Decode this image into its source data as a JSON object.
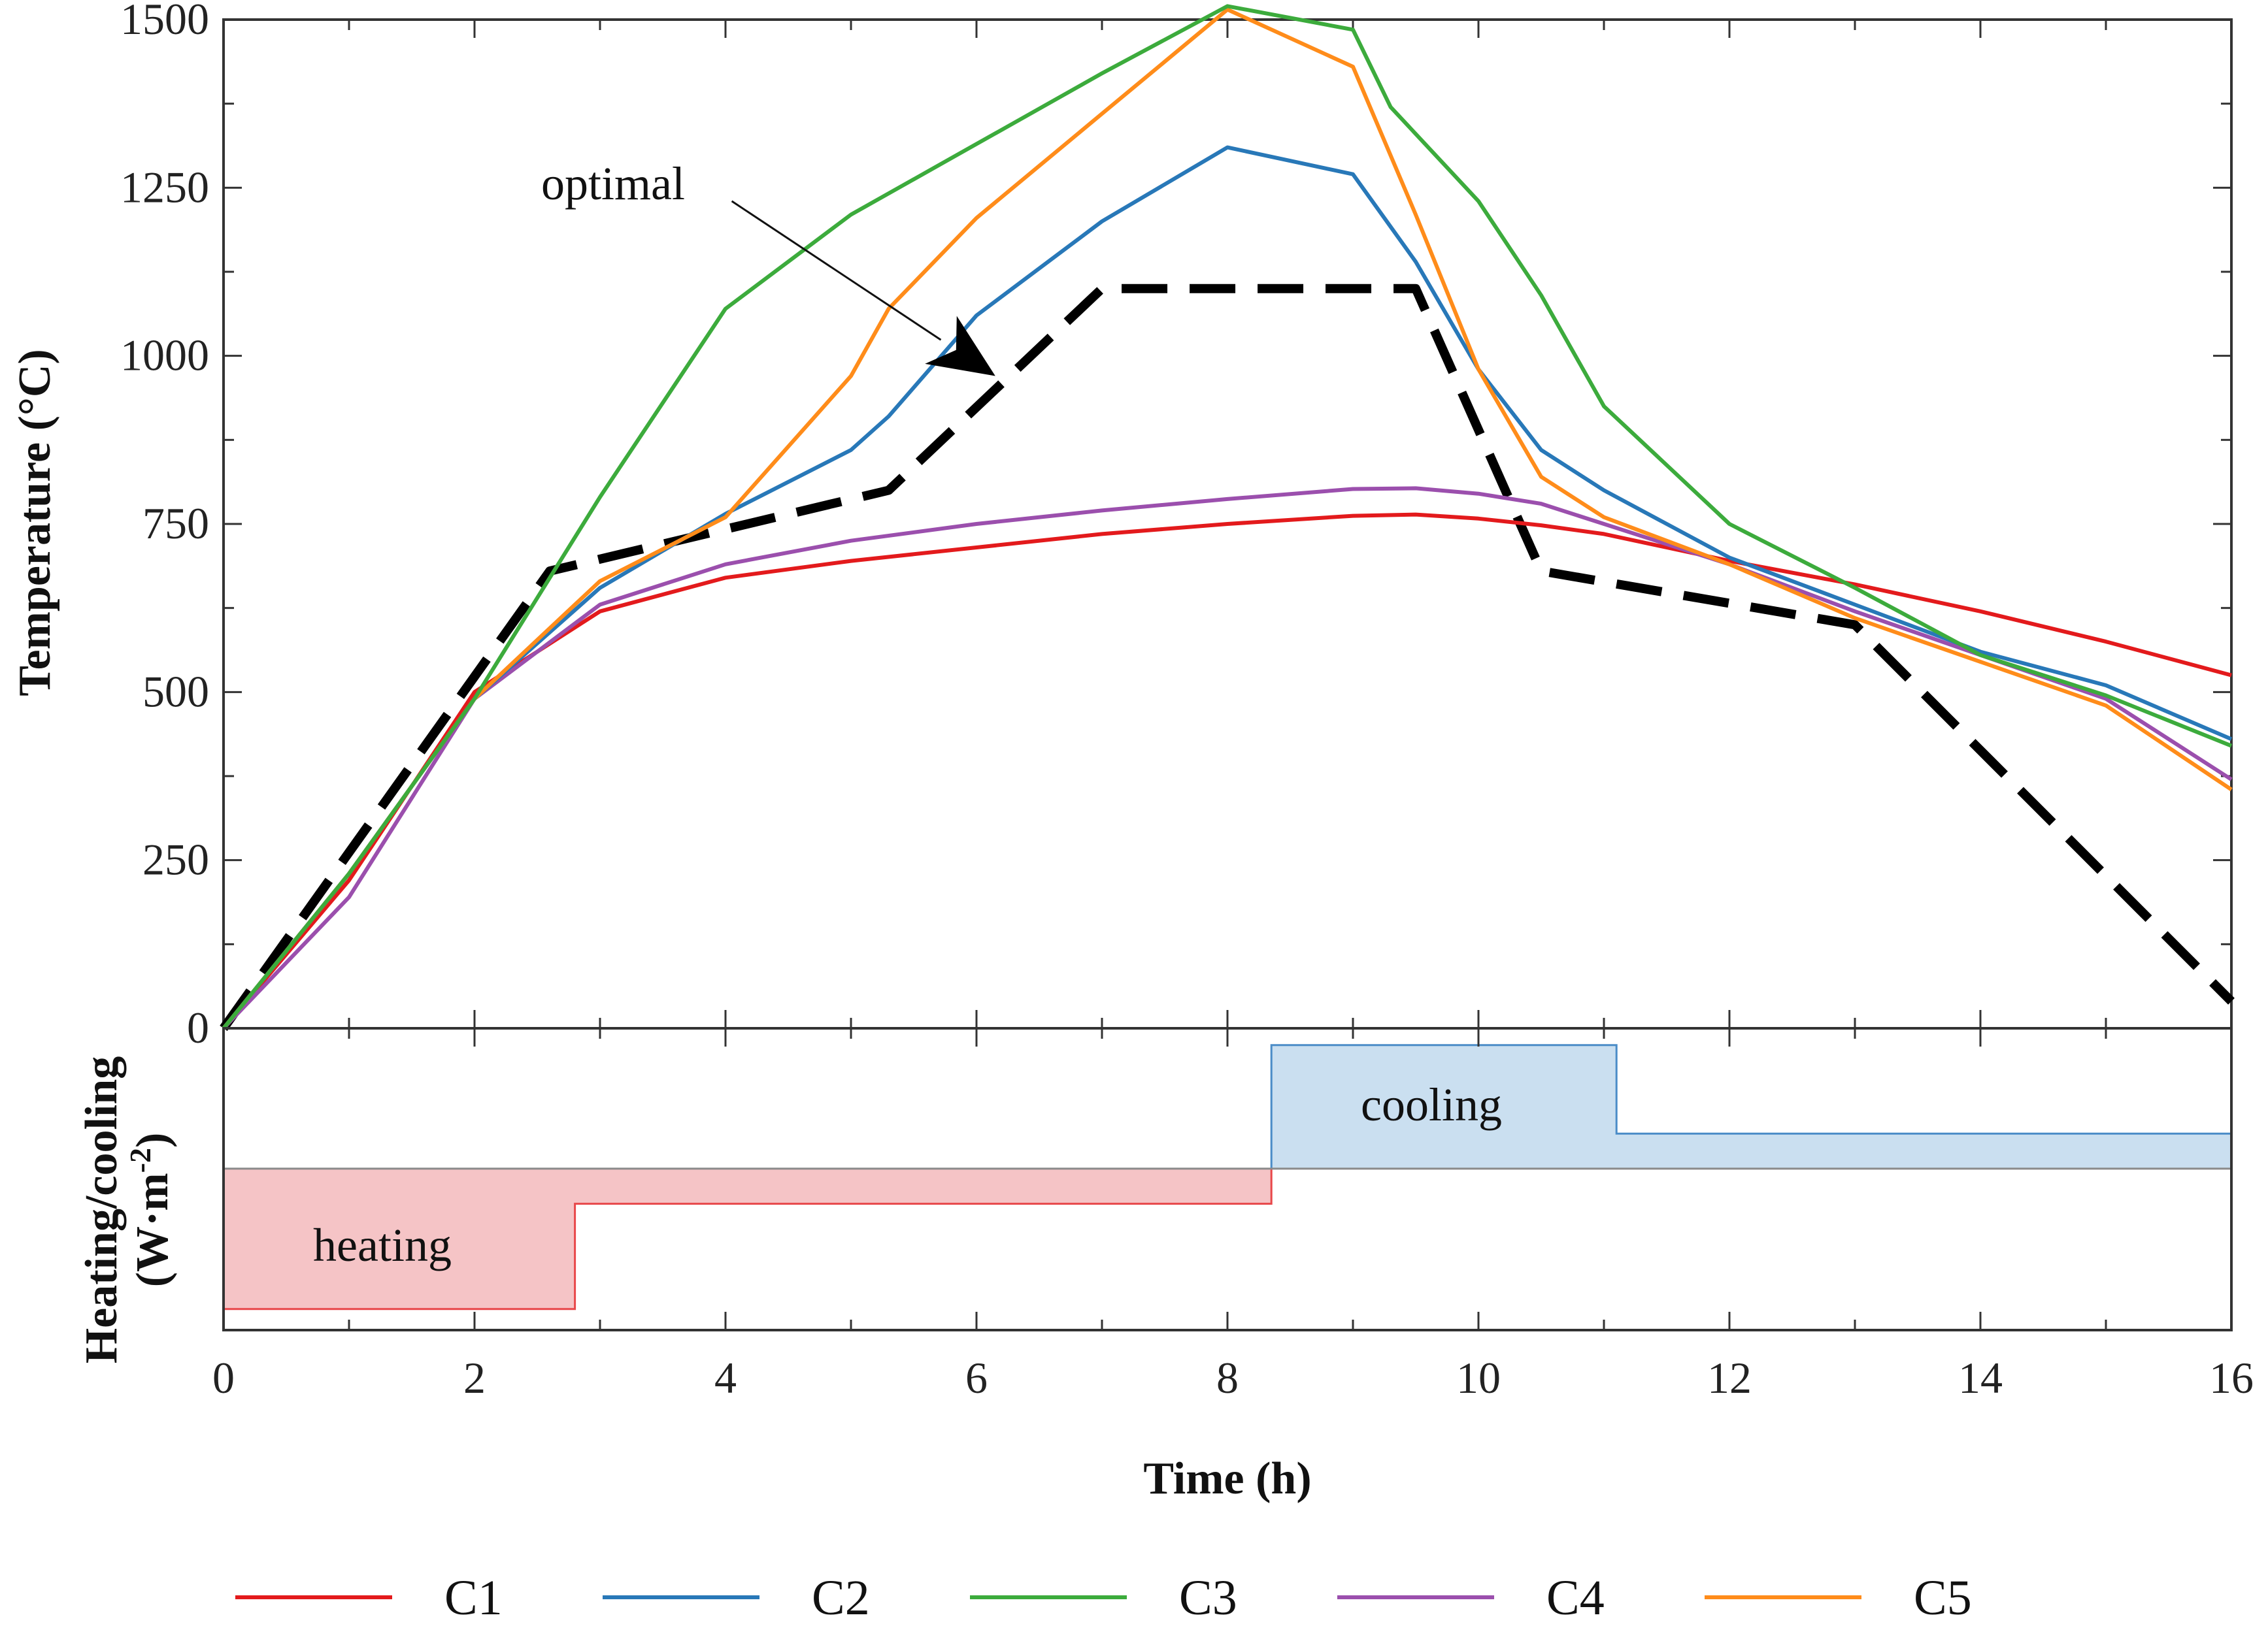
{
  "chart_data": [
    {
      "type": "line",
      "panel": "temperature",
      "ylabel": "Temperature (°C)",
      "xlabel": "Time (h)",
      "xlim": [
        0,
        16
      ],
      "ylim": [
        0,
        1500
      ],
      "xticks": [
        "0",
        "2",
        "4",
        "6",
        "8",
        "10",
        "12",
        "14",
        "16"
      ],
      "yticks": [
        "0",
        "250",
        "500",
        "750",
        "1000",
        "1250",
        "1500"
      ],
      "grid": false,
      "annotation": {
        "text": "optimal",
        "arrow_from": [
          4.05,
          1230
        ],
        "arrow_to": [
          6.15,
          970
        ]
      },
      "series": [
        {
          "name": "C1",
          "color": "#e31a1c",
          "style": "solid",
          "points": [
            [
              0,
              0
            ],
            [
              1,
              220
            ],
            [
              2,
              500
            ],
            [
              3,
              620
            ],
            [
              4,
              670
            ],
            [
              5,
              695
            ],
            [
              6,
              715
            ],
            [
              7,
              735
            ],
            [
              8,
              750
            ],
            [
              9,
              762
            ],
            [
              9.5,
              764
            ],
            [
              10,
              758
            ],
            [
              10.5,
              748
            ],
            [
              11,
              735
            ],
            [
              12,
              695
            ],
            [
              13,
              660
            ],
            [
              14,
              620
            ],
            [
              15,
              575
            ],
            [
              16,
              525
            ]
          ]
        },
        {
          "name": "C2",
          "color": "#2878b8",
          "style": "solid",
          "points": [
            [
              0,
              0
            ],
            [
              1,
              230
            ],
            [
              2,
              490
            ],
            [
              3,
              655
            ],
            [
              4,
              765
            ],
            [
              5,
              860
            ],
            [
              5.3,
              910
            ],
            [
              6,
              1060
            ],
            [
              7,
              1200
            ],
            [
              8,
              1310
            ],
            [
              9,
              1270
            ],
            [
              9.5,
              1140
            ],
            [
              10,
              980
            ],
            [
              10.5,
              860
            ],
            [
              11,
              800
            ],
            [
              12,
              700
            ],
            [
              13,
              630
            ],
            [
              14,
              560
            ],
            [
              15,
              510
            ],
            [
              16,
              430
            ]
          ]
        },
        {
          "name": "C3",
          "color": "#3cab3c",
          "style": "solid",
          "points": [
            [
              0,
              0
            ],
            [
              1,
              230
            ],
            [
              2,
              490
            ],
            [
              3,
              790
            ],
            [
              4,
              1070
            ],
            [
              5,
              1210
            ],
            [
              6,
              1315
            ],
            [
              7,
              1420
            ],
            [
              8,
              1520
            ],
            [
              9,
              1485
            ],
            [
              9.3,
              1370
            ],
            [
              10,
              1230
            ],
            [
              10.5,
              1090
            ],
            [
              11,
              925
            ],
            [
              12,
              750
            ],
            [
              13,
              655
            ],
            [
              14,
              555
            ],
            [
              15,
              495
            ],
            [
              16,
              420
            ]
          ]
        },
        {
          "name": "C4",
          "color": "#9b4fad",
          "style": "solid",
          "points": [
            [
              0,
              0
            ],
            [
              1,
              195
            ],
            [
              2,
              490
            ],
            [
              3,
              630
            ],
            [
              4,
              690
            ],
            [
              5,
              725
            ],
            [
              6,
              750
            ],
            [
              7,
              770
            ],
            [
              8,
              787
            ],
            [
              9,
              802
            ],
            [
              9.5,
              803
            ],
            [
              10,
              795
            ],
            [
              10.5,
              780
            ],
            [
              11,
              750
            ],
            [
              12,
              690
            ],
            [
              13,
              620
            ],
            [
              14,
              555
            ],
            [
              15,
              490
            ],
            [
              16,
              370
            ]
          ]
        },
        {
          "name": "C5",
          "color": "#ff8c1a",
          "style": "solid",
          "points": [
            [
              0,
              0
            ],
            [
              1,
              230
            ],
            [
              2,
              490
            ],
            [
              3,
              665
            ],
            [
              4,
              760
            ],
            [
              5,
              970
            ],
            [
              5.3,
              1070
            ],
            [
              6,
              1205
            ],
            [
              7,
              1360
            ],
            [
              8,
              1515
            ],
            [
              9,
              1430
            ],
            [
              9.5,
              1210
            ],
            [
              10,
              980
            ],
            [
              10.5,
              820
            ],
            [
              11,
              760
            ],
            [
              12,
              690
            ],
            [
              13,
              610
            ],
            [
              14,
              545
            ],
            [
              15,
              480
            ],
            [
              16,
              355
            ]
          ]
        },
        {
          "name": "optimal",
          "color": "#000000",
          "style": "dashed",
          "points": [
            [
              0,
              0
            ],
            [
              2.6,
              680
            ],
            [
              5.3,
              800
            ],
            [
              7,
              1100
            ],
            [
              9.5,
              1100
            ],
            [
              10.5,
              680
            ],
            [
              13,
              600
            ],
            [
              16,
              40
            ]
          ]
        }
      ]
    },
    {
      "type": "area",
      "panel": "heating_cooling",
      "ylabel": "Heating/cooling",
      "ylabel_units": "(W·m",
      "ylabel_exponent": "-2",
      "ylabel_close": ")",
      "xlim": [
        0,
        16
      ],
      "ylim": [
        -1.15,
        1.0
      ],
      "series": [
        {
          "name": "heating",
          "color": "#e8474a",
          "fill": "#f5c4c6",
          "label": "heating",
          "points": [
            [
              0,
              0
            ],
            [
              0,
              -1
            ],
            [
              2.8,
              -1
            ],
            [
              2.8,
              -0.25
            ],
            [
              8.35,
              -0.25
            ],
            [
              8.35,
              0
            ]
          ]
        },
        {
          "name": "cooling",
          "color": "#4a8cc7",
          "fill": "#cadff0",
          "label": "cooling",
          "points": [
            [
              8.35,
              0
            ],
            [
              8.35,
              0.88
            ],
            [
              11.1,
              0.88
            ],
            [
              11.1,
              0.25
            ],
            [
              16,
              0.25
            ],
            [
              16,
              0
            ]
          ]
        }
      ]
    }
  ],
  "legend": {
    "position": "bottom",
    "items": [
      {
        "label": "C1",
        "color": "#e31a1c"
      },
      {
        "label": "C2",
        "color": "#2878b8"
      },
      {
        "label": "C3",
        "color": "#3cab3c"
      },
      {
        "label": "C4",
        "color": "#9b4fad"
      },
      {
        "label": "C5",
        "color": "#ff8c1a"
      }
    ]
  }
}
